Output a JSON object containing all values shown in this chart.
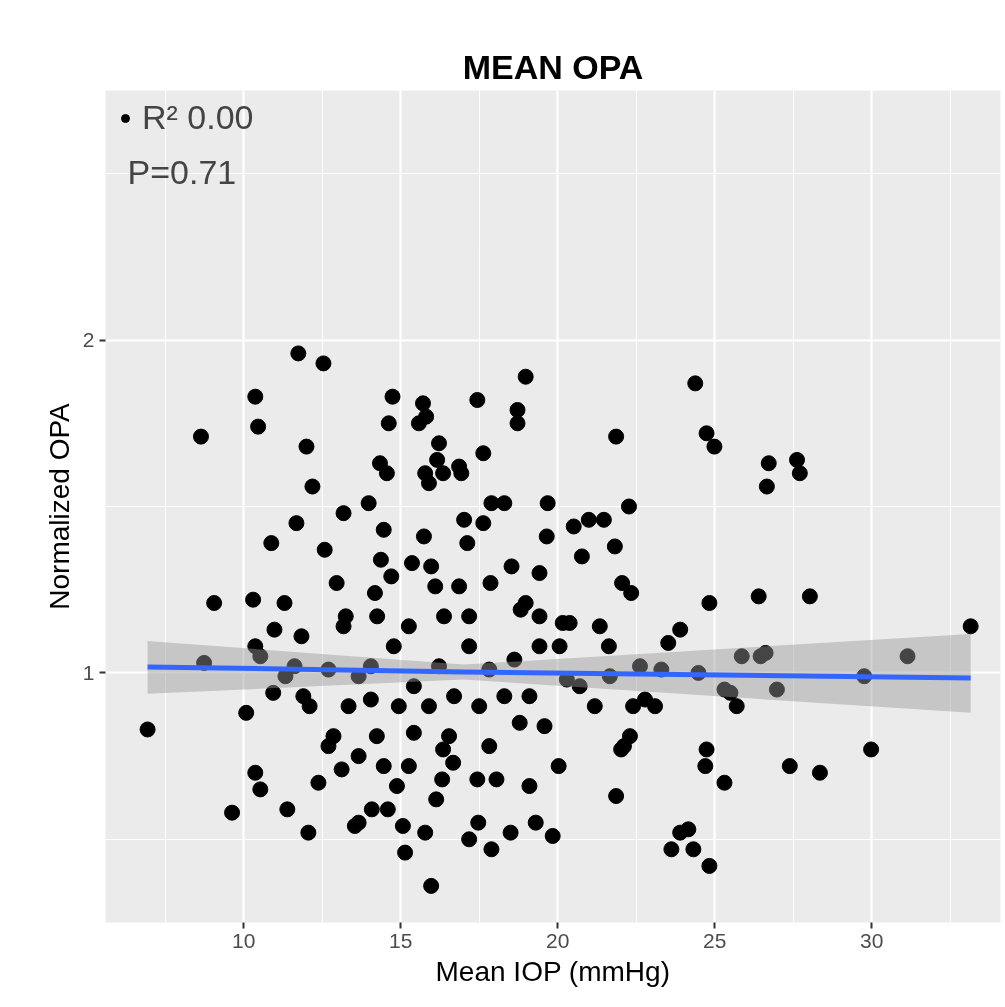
{
  "chart_data": {
    "type": "scatter",
    "title": "MEAN OPA",
    "xlabel": "Mean IOP (mmHg)",
    "ylabel": "Normalized OPA",
    "xlim": [
      5.6,
      34.1
    ],
    "ylim": [
      0.25,
      2.75
    ],
    "xticks": [
      10,
      15,
      20,
      25,
      30
    ],
    "yticks": [
      1,
      2
    ],
    "grid": true,
    "legend": "top left",
    "annotations": [
      "P=0.71"
    ],
    "series": [
      {
        "name": "R² 0.00",
        "marker": "circle",
        "color": "#000000",
        "x": [
          6.94,
          8.64,
          8.74,
          9.06,
          9.63,
          10.08,
          10.37,
          10.46,
          10.3,
          10.37,
          10.53,
          10.88,
          10.98,
          11.3,
          11.39,
          11.74,
          12.0,
          12.19,
          11.68,
          11.84,
          12.06,
          12.54,
          12.58,
          12.38,
          12.1,
          12.86,
          13.18,
          12.96,
          13.25,
          13.12,
          13.54,
          13.66,
          13.98,
          14.34,
          14.56,
          14.62,
          14.74,
          14.37,
          14.18,
          14.25,
          14.46,
          14.7,
          14.05,
          14.24,
          14.46,
          14.08,
          14.59,
          15.07,
          15.14,
          14.88,
          15.42,
          15.58,
          15.71,
          15.81,
          15.78,
          15.9,
          15.36,
          15.74,
          15.97,
          16.1,
          16.16,
          16.22,
          16.35,
          16.38,
          15.97,
          15.78,
          16.13,
          16.32,
          16.35,
          16.67,
          16.86,
          16.93,
          17.02,
          17.12,
          16.86,
          17.18,
          17.44,
          17.47,
          17.44,
          17.63,
          17.63,
          17.86,
          17.89,
          18.05,
          18.3,
          17.89,
          18.53,
          18.72,
          18.72,
          18.98,
          18.98,
          18.82,
          18.5,
          18.79,
          19.42,
          19.65,
          19.68,
          19.42,
          19.84,
          19.3,
          20.03,
          20.16,
          20.38,
          20.29,
          20.51,
          20.99,
          20.77,
          21.47,
          21.82,
          21.86,
          22.05,
          22.27,
          22.34,
          21.63,
          22.4,
          21.86,
          22.3,
          22.02,
          22.11,
          22.78,
          23.3,
          23.52,
          23.62,
          23.9,
          24.32,
          24.16,
          24.38,
          24.48,
          24.74,
          24.7,
          24.74,
          24.83,
          24.99,
          24.83,
          25.31,
          25.5,
          25.31,
          25.7,
          25.86,
          26.4,
          26.66,
          26.72,
          26.46,
          26.62,
          26.98,
          27.39,
          27.62,
          27.71,
          28.03,
          28.35,
          29.76,
          29.98,
          31.14,
          33.15,
          10.37,
          10.53,
          10.94,
          11.33,
          11.62,
          11.9,
          12.7,
          13.34,
          13.66,
          14.05,
          14.78,
          14.94,
          15.42,
          15.9,
          16.22,
          16.7,
          17.18,
          17.5,
          17.82,
          18.3,
          18.62,
          19.1,
          19.58,
          20.06,
          20.7,
          21.18,
          21.66,
          22.62,
          23.1,
          23.9,
          12.7,
          13.66,
          15.26,
          16.54,
          17.82,
          19.1,
          13.18,
          15.26,
          17.18,
          19.42,
          21.34
        ],
        "values": [
          0.83,
          1.71,
          1.03,
          1.21,
          0.58,
          0.88,
          1.83,
          1.74,
          1.22,
          0.7,
          0.65,
          1.39,
          1.13,
          1.21,
          0.59,
          1.96,
          1.68,
          1.56,
          1.45,
          1.11,
          0.52,
          1.93,
          1.37,
          0.67,
          0.9,
          0.81,
          1.48,
          1.27,
          1.17,
          0.71,
          0.54,
          0.55,
          1.51,
          1.63,
          1.6,
          1.75,
          1.83,
          1.34,
          1.24,
          1.17,
          1.43,
          1.29,
          0.92,
          0.81,
          0.72,
          0.59,
          0.59,
          0.54,
          0.46,
          0.66,
          0.82,
          1.75,
          1.81,
          1.77,
          1.6,
          1.57,
          1.33,
          1.41,
          1.32,
          1.26,
          1.64,
          1.69,
          1.6,
          1.17,
          0.36,
          0.52,
          0.62,
          0.68,
          0.77,
          0.73,
          1.62,
          1.6,
          1.46,
          1.39,
          1.26,
          0.5,
          0.68,
          0.55,
          1.82,
          1.66,
          1.45,
          1.27,
          0.47,
          0.68,
          1.51,
          1.51,
          1.32,
          1.79,
          1.75,
          1.89,
          1.21,
          1.19,
          0.52,
          0.85,
          1.3,
          1.41,
          1.51,
          1.08,
          0.51,
          0.55,
          0.72,
          1.15,
          1.15,
          0.98,
          1.44,
          1.46,
          1.35,
          1.46,
          1.38,
          1.71,
          1.27,
          1.5,
          1.24,
          1.08,
          0.9,
          0.63,
          0.81,
          0.77,
          0.78,
          0.92,
          1.01,
          1.09,
          0.47,
          0.52,
          0.47,
          0.53,
          1.87,
          1.0,
          0.77,
          0.72,
          1.72,
          0.42,
          1.68,
          1.21,
          0.95,
          0.94,
          0.67,
          0.9,
          1.05,
          1.23,
          1.56,
          1.63,
          1.05,
          1.06,
          0.95,
          0.72,
          1.64,
          1.6,
          1.23,
          0.7,
          0.99,
          0.77,
          1.05,
          1.14,
          1.08,
          1.05,
          0.94,
          0.99,
          1.02,
          0.93,
          1.01,
          0.9,
          0.99,
          1.02,
          1.08,
          0.9,
          0.96,
          0.9,
          1.02,
          0.93,
          1.08,
          0.9,
          1.01,
          0.93,
          1.04,
          0.93,
          0.84,
          1.08,
          0.96,
          0.9,
          0.99,
          1.02,
          0.9,
          1.13,
          0.78,
          0.75,
          0.72,
          0.81,
          0.78,
          0.66,
          1.14,
          1.14,
          1.17,
          1.17,
          1.14
        ]
      },
      {
        "type": "line",
        "color": "#3366ff",
        "x": [
          6.94,
          17.0,
          33.15
        ],
        "values": [
          1.018,
          1.003,
          0.985
        ],
        "lower": [
          0.937,
          0.98,
          0.88
        ],
        "upper": [
          1.096,
          1.025,
          1.117
        ]
      }
    ]
  }
}
